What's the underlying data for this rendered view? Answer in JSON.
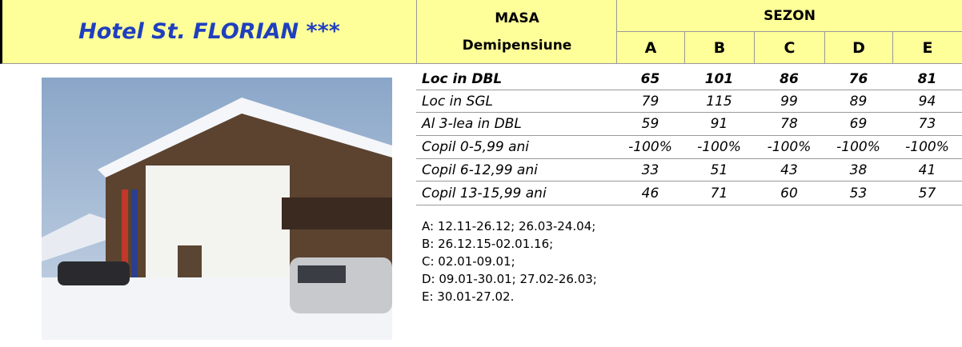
{
  "header": {
    "title": "Hotel St. FLORIAN ***"
  },
  "table": {
    "masa": "MASA",
    "masa_type": "Demipensiune",
    "sezon": "SEZON",
    "columns": [
      "A",
      "B",
      "C",
      "D",
      "E"
    ],
    "rows": [
      {
        "label": "Loc in DBL",
        "values": [
          65,
          101,
          86,
          76,
          81
        ]
      },
      {
        "label": "Loc in SGL",
        "values": [
          79,
          115,
          99,
          89,
          94
        ]
      },
      {
        "label": "Al 3-lea in DBL",
        "values": [
          59,
          91,
          78,
          69,
          73
        ]
      },
      {
        "label": "Copil 0-5,99 ani",
        "values": [
          "-100%",
          "-100%",
          "-100%",
          "-100%",
          "-100%"
        ]
      },
      {
        "label": "Copil 6-12,99 ani",
        "values": [
          33,
          51,
          43,
          38,
          41
        ]
      },
      {
        "label": "Copil 13-15,99 ani",
        "values": [
          46,
          71,
          60,
          53,
          57
        ]
      }
    ]
  },
  "notes": [
    "A: 12.11-26.12; 26.03-24.04;",
    "B: 26.12.15-02.01.16;",
    "C: 02.01-09.01;",
    "D: 09.01-30.01; 27.02-26.03;",
    "E: 30.01-27.02."
  ]
}
